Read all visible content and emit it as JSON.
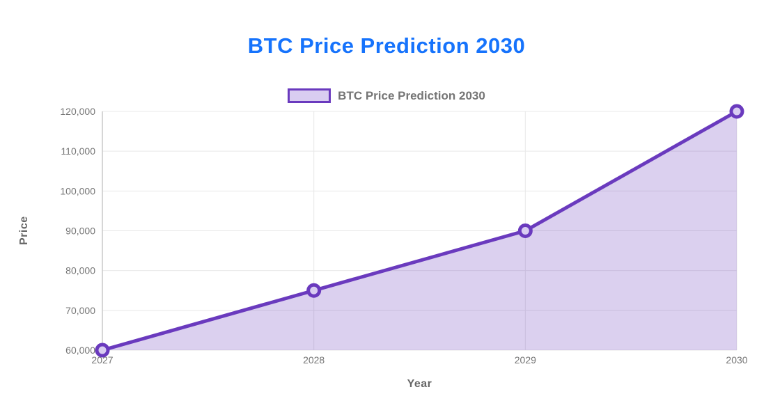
{
  "page": {
    "title": "BTC Price Prediction 2030"
  },
  "legend": {
    "label": "BTC Price Prediction 2030"
  },
  "axes": {
    "x_title": "Year",
    "y_title": "Price"
  },
  "chart_data": {
    "type": "area",
    "title": "BTC Price Prediction 2030",
    "categories": [
      "2027",
      "2028",
      "2029",
      "2030"
    ],
    "series": [
      {
        "name": "BTC Price Prediction 2030",
        "values": [
          60000,
          75000,
          90000,
          120000
        ]
      }
    ],
    "xlabel": "Year",
    "ylabel": "Price",
    "ylim": [
      60000,
      120000
    ],
    "ytick_step": 10000,
    "ytick_labels": [
      "60,000",
      "70,000",
      "80,000",
      "90,000",
      "100,000",
      "110,000",
      "120,000"
    ],
    "grid": true,
    "legend_position": "top",
    "marker": "open-circle"
  },
  "colors": {
    "title": "#1673fc",
    "line": "#6a3abe",
    "area_fill": "#d9cdf1",
    "tick_text": "#757575",
    "axis_title_text": "#666666",
    "gridline": "#e8e8e8",
    "axis_line": "#c9c9c9",
    "legend_text": "#757575"
  }
}
